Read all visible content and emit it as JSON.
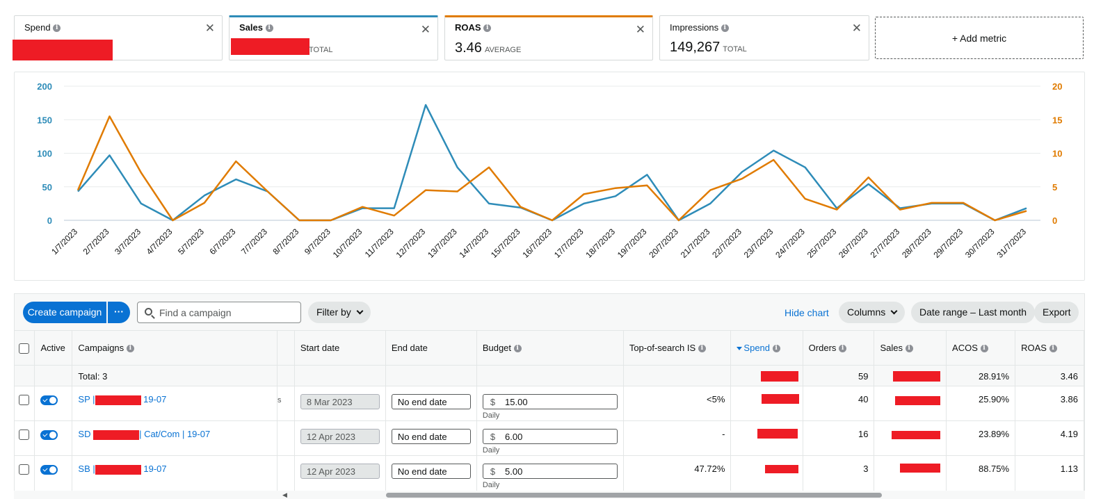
{
  "metric_cards": [
    {
      "name": "Spend",
      "value": "",
      "suffix": "",
      "redacted": true,
      "accent": "",
      "bold": false
    },
    {
      "name": "Sales",
      "value": "",
      "suffix": "TOTAL",
      "redacted": true,
      "accent": "#2e8cb8",
      "bold": true
    },
    {
      "name": "ROAS",
      "value": "3.46",
      "suffix": "AVERAGE",
      "redacted": false,
      "accent": "#e07b00",
      "bold": true
    },
    {
      "name": "Impressions",
      "value": "149,267",
      "suffix": "TOTAL",
      "redacted": false,
      "accent": "",
      "bold": false
    }
  ],
  "add_metric_label": "+ Add metric",
  "close_glyph": "✕",
  "chart_data": {
    "type": "line",
    "x": [
      "1/7/2023",
      "2/7/2023",
      "3/7/2023",
      "4/7/2023",
      "5/7/2023",
      "6/7/2023",
      "7/7/2023",
      "8/7/2023",
      "9/7/2023",
      "10/7/2023",
      "11/7/2023",
      "12/7/2023",
      "13/7/2023",
      "14/7/2023",
      "15/7/2023",
      "16/7/2023",
      "17/7/2023",
      "18/7/2023",
      "19/7/2023",
      "20/7/2023",
      "21/7/2023",
      "22/7/2023",
      "23/7/2023",
      "24/7/2023",
      "25/7/2023",
      "26/7/2023",
      "27/7/2023",
      "28/7/2023",
      "29/7/2023",
      "30/7/2023",
      "31/7/2023"
    ],
    "series": [
      {
        "name": "Sales",
        "axis": "left",
        "color": "#2e8cb8",
        "values": [
          43,
          97,
          25,
          0,
          37,
          61,
          43,
          0,
          0,
          18,
          18,
          172,
          79,
          25,
          19,
          0,
          25,
          36,
          68,
          0,
          25,
          72,
          104,
          79,
          18,
          54,
          18,
          25,
          25,
          0,
          18
        ]
      },
      {
        "name": "ROAS",
        "axis": "right",
        "color": "#e07b00",
        "values": [
          4.5,
          15.5,
          7.1,
          0,
          2.6,
          8.8,
          4.3,
          0,
          0,
          2.0,
          0.7,
          4.5,
          4.3,
          7.9,
          2.0,
          0,
          3.9,
          4.8,
          5.2,
          0,
          4.5,
          6.2,
          9.0,
          3.2,
          1.6,
          6.4,
          1.6,
          2.6,
          2.6,
          0,
          1.4
        ]
      }
    ],
    "y_left_ticks": [
      "0",
      "50",
      "100",
      "150",
      "200"
    ],
    "y_right_ticks": [
      "0",
      "5",
      "10",
      "15",
      "20"
    ],
    "ylim_left": [
      0,
      200
    ],
    "ylim_right": [
      0,
      20
    ],
    "grid": true
  },
  "toolbar": {
    "create_label": "Create campaign",
    "more_label": "···",
    "search_placeholder": "Find a campaign",
    "filter_label": "Filter by",
    "hide_chart_label": "Hide chart",
    "columns_label": "Columns",
    "date_range_label": "Date range – Last month",
    "export_label": "Export"
  },
  "table": {
    "headers": {
      "active": "Active",
      "campaigns": "Campaigns",
      "start_date": "Start date",
      "end_date": "End date",
      "budget": "Budget",
      "top_of_search": "Top-of-search IS",
      "spend": "Spend",
      "orders": "Orders",
      "sales": "Sales",
      "acos": "ACOS",
      "roas": "ROAS"
    },
    "total": {
      "label": "Total: 3",
      "orders": "59",
      "acos": "28.91%",
      "roas": "3.46"
    },
    "rows": [
      {
        "prefix": "SP |",
        "suffix": " 19-07",
        "partial": "s",
        "start_date": "8 Mar 2023",
        "end_date": "No end date",
        "currency": "$",
        "budget": "15.00",
        "budget_type": "Daily",
        "top_of_search": "<5%",
        "orders": "40",
        "acos": "25.90%",
        "roas": "3.86"
      },
      {
        "prefix": "SD ",
        "suffix": "| Cat/Com | 19-07",
        "partial": "",
        "start_date": "12 Apr 2023",
        "end_date": "No end date",
        "currency": "$",
        "budget": "6.00",
        "budget_type": "Daily",
        "top_of_search": "-",
        "orders": "16",
        "acos": "23.89%",
        "roas": "4.19"
      },
      {
        "prefix": "SB |",
        "suffix": " 19-07",
        "partial": "",
        "start_date": "12 Apr 2023",
        "end_date": "No end date",
        "currency": "$",
        "budget": "5.00",
        "budget_type": "Daily",
        "top_of_search": "47.72%",
        "orders": "3",
        "acos": "88.75%",
        "roas": "1.13"
      }
    ]
  }
}
